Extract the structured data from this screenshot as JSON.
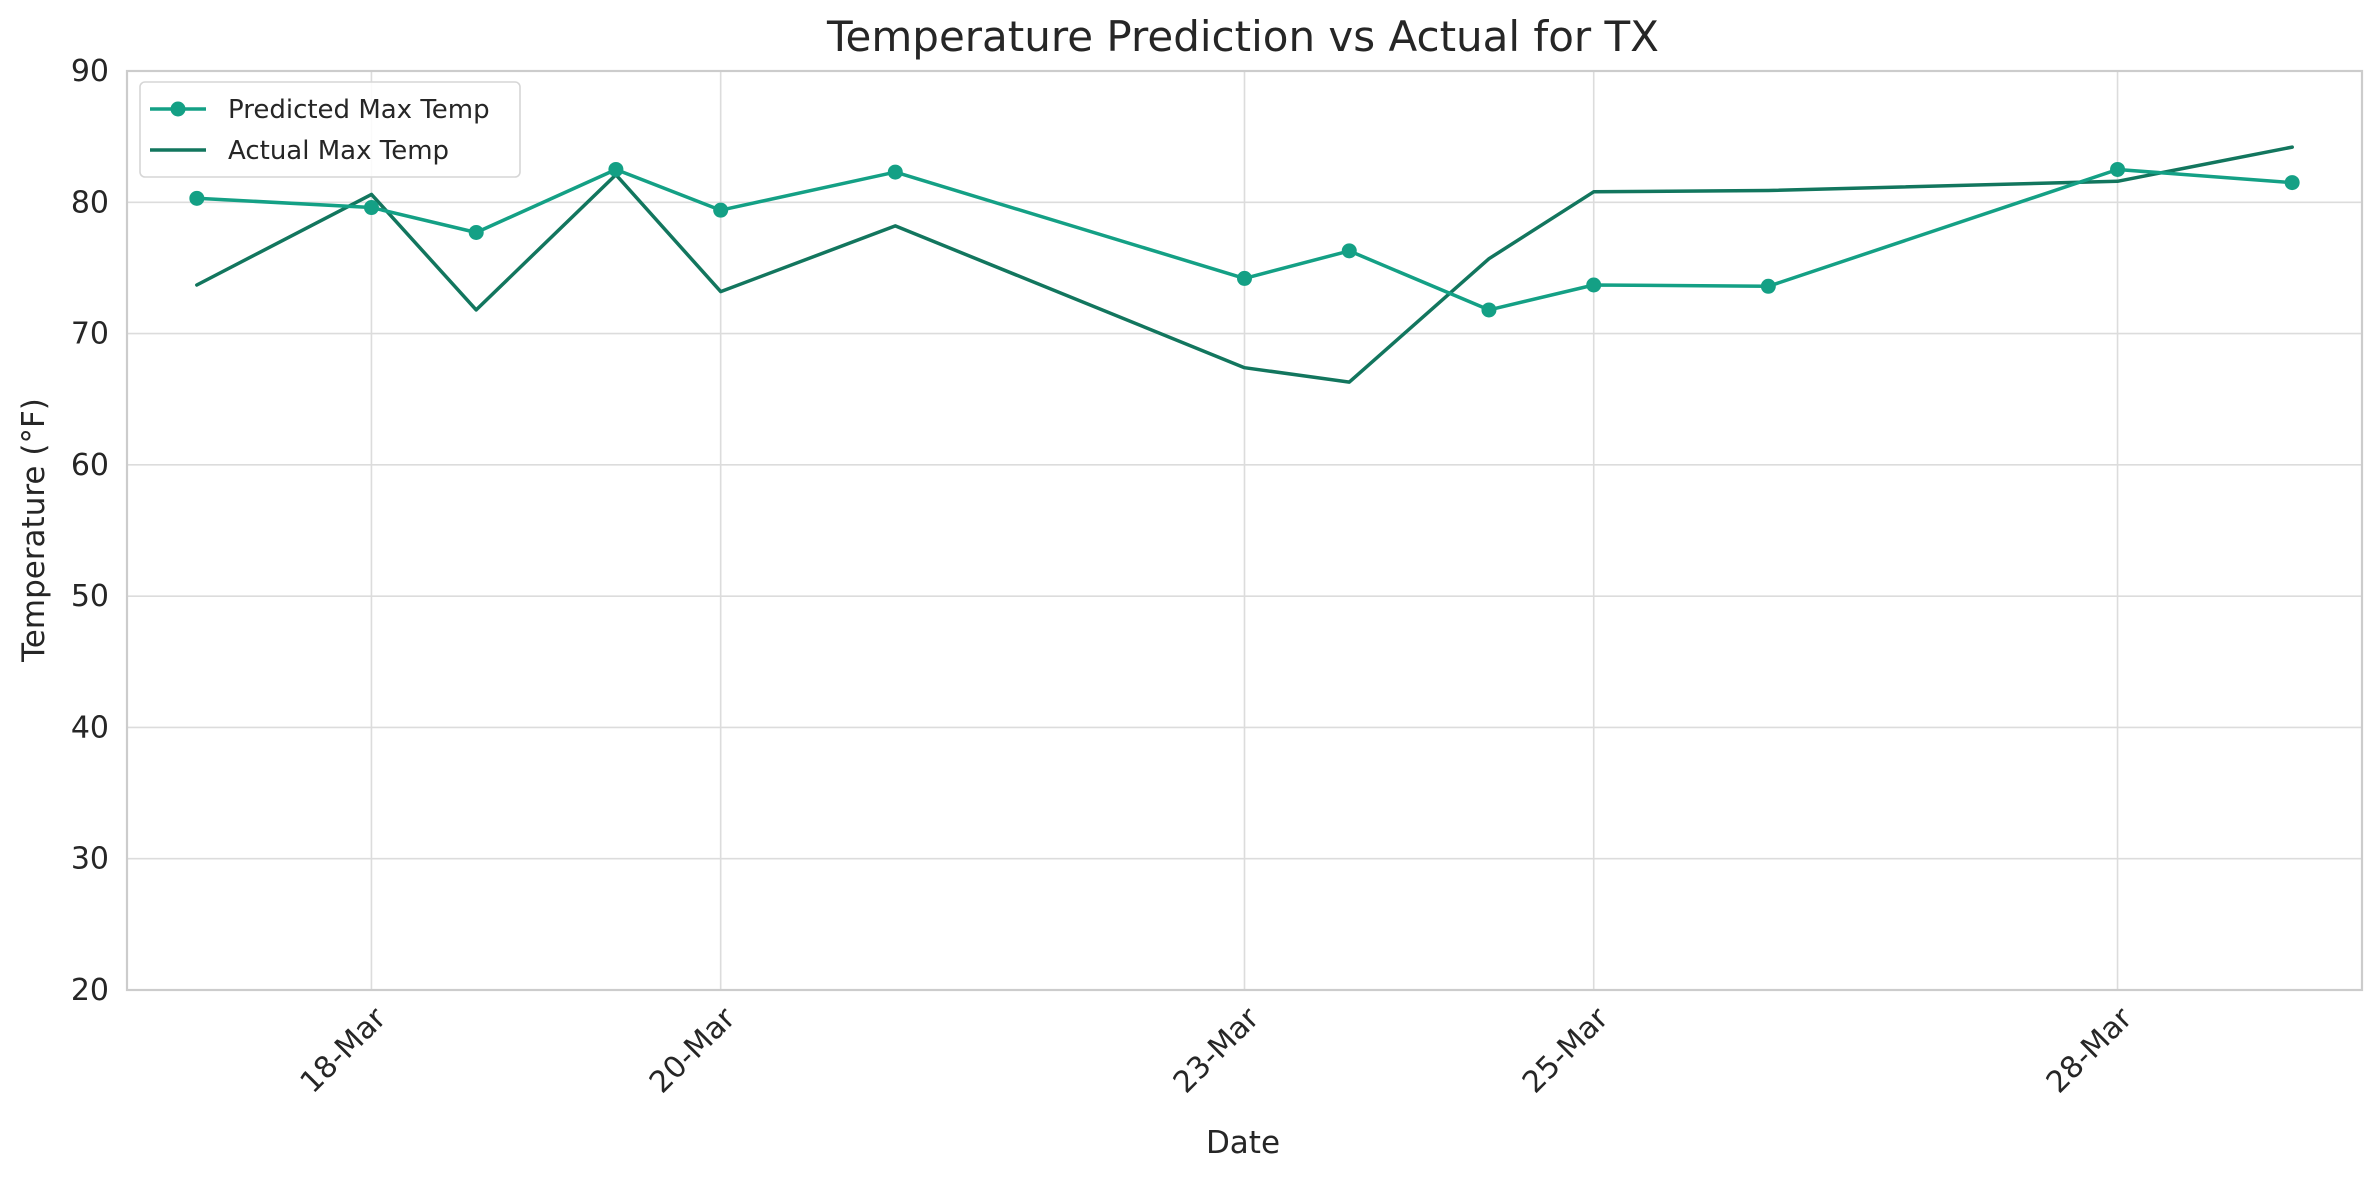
{
  "chart_data": {
    "type": "line",
    "title": "Temperature Prediction vs Actual for TX",
    "xlabel": "Date",
    "ylabel": "Temperature (°F)",
    "ylim": [
      20,
      90
    ],
    "yticks": [
      20,
      30,
      40,
      50,
      60,
      70,
      80,
      90
    ],
    "x": [
      "17-Mar",
      "18-Mar",
      "19-Mar",
      "19-Mar",
      "20-Mar",
      "21-Mar",
      "23-Mar",
      "24-Mar",
      "24-Mar",
      "25-Mar",
      "26-Mar",
      "28-Mar",
      "29-Mar"
    ],
    "xticks": [
      "18-Mar",
      "20-Mar",
      "23-Mar",
      "25-Mar",
      "28-Mar"
    ],
    "grid": true,
    "legend_position": "top-left",
    "series": [
      {
        "name": "Predicted Max Temp",
        "color": "#14a085",
        "marker": "circle",
        "values": [
          80.3,
          79.6,
          77.7,
          82.5,
          79.4,
          82.3,
          74.2,
          76.3,
          71.8,
          73.7,
          73.6,
          82.5,
          81.5
        ]
      },
      {
        "name": "Actual Max Temp",
        "color": "#12765e",
        "marker": "none",
        "values": [
          73.7,
          80.6,
          71.8,
          82.1,
          73.2,
          78.2,
          67.4,
          66.3,
          75.7,
          80.8,
          80.9,
          81.6,
          84.2
        ]
      }
    ]
  }
}
